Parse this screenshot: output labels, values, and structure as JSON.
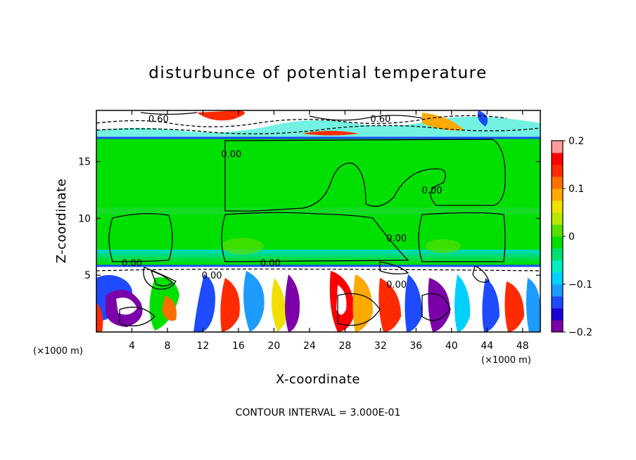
{
  "chart_data": {
    "type": "heatmap",
    "title": "disturbunce of potential temperature",
    "xlabel": "X-coordinate",
    "ylabel": "Z-coordinate",
    "x_unit": "(×1000 m)",
    "xlim": [
      0,
      50
    ],
    "ylim": [
      0,
      19.5
    ],
    "x_ticks": [
      4,
      8,
      12,
      16,
      20,
      24,
      28,
      32,
      36,
      40,
      44,
      48
    ],
    "y_ticks": [
      5,
      10,
      15
    ],
    "colorbar": {
      "range": [
        -0.2,
        0.2
      ],
      "ticks": [
        {
          "value": 0.2,
          "label": "0.2"
        },
        {
          "value": 0.1,
          "label": "0.1"
        },
        {
          "value": 0,
          "label": "0"
        },
        {
          "value": -0.1,
          "label": "−0.1"
        },
        {
          "value": -0.2,
          "label": "−0.2"
        }
      ],
      "colors": [
        "#7b00a8",
        "#1a00d8",
        "#1e4bff",
        "#1e9bff",
        "#00d0ff",
        "#00eec0",
        "#00e070",
        "#00e000",
        "#56e000",
        "#b8e600",
        "#f0e000",
        "#ffaa00",
        "#ff6e00",
        "#ff2a00",
        "#ff0000",
        "#ff9a9a"
      ]
    },
    "contour_labels": [
      {
        "text": "0.60",
        "x": 7.0,
        "y": 18.8
      },
      {
        "text": "0.60",
        "x": 32.0,
        "y": 18.8
      },
      {
        "text": "0.00",
        "x": 15.2,
        "y": 15.7
      },
      {
        "text": "0.00",
        "x": 37.8,
        "y": 12.5
      },
      {
        "text": "0.00",
        "x": 33.8,
        "y": 8.3
      },
      {
        "text": "0.00",
        "x": 4.0,
        "y": 6.1
      },
      {
        "text": "0.00",
        "x": 19.6,
        "y": 6.1
      },
      {
        "text": "0.00",
        "x": 13.0,
        "y": 5.0
      },
      {
        "text": "0.00",
        "x": 33.8,
        "y": 4.2
      }
    ],
    "contour_interval_note": "CONTOUR INTERVAL = 3.000E-01"
  },
  "colors": {
    "field_background": "#00e000",
    "upper_band": "#00e8c8",
    "boundary_blue": "#1e4bff"
  }
}
